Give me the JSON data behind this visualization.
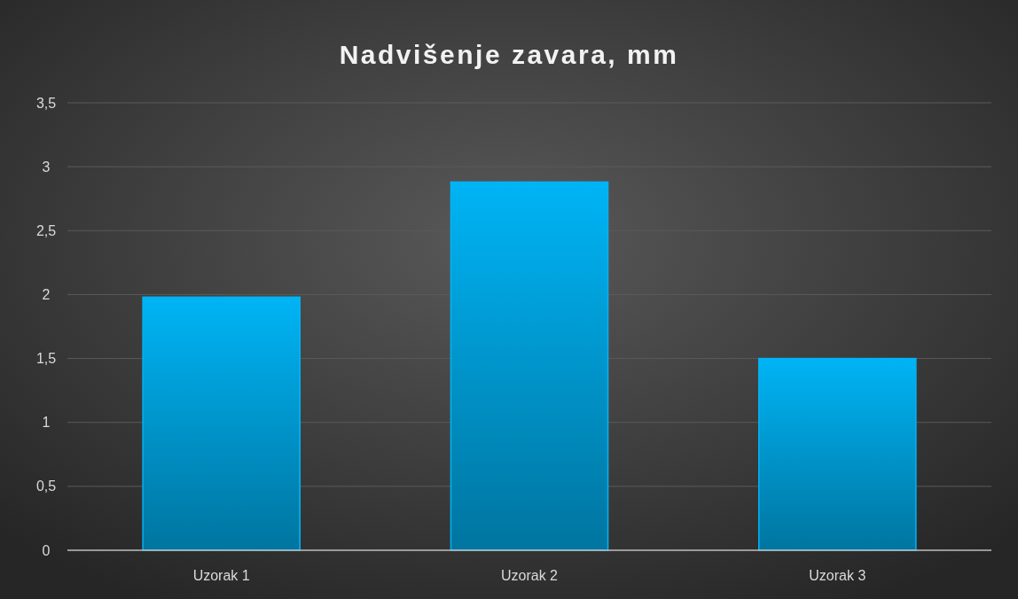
{
  "chart_data": {
    "type": "bar",
    "title": "Nadvišenje zavara, mm",
    "categories": [
      "Uzorak 1",
      "Uzorak 2",
      "Uzorak 3"
    ],
    "values": [
      1.98,
      2.88,
      1.5
    ],
    "color": "#00b4f5",
    "ylim": [
      0,
      3.5
    ],
    "yticks": [
      0,
      {
        "value": 0.5,
        "label": "0,5"
      },
      1,
      {
        "value": 1.5,
        "label": "1,5"
      },
      2,
      {
        "value": 2.5,
        "label": "2,5"
      },
      3,
      {
        "value": 3.5,
        "label": "3,5"
      }
    ],
    "grid": "y"
  }
}
